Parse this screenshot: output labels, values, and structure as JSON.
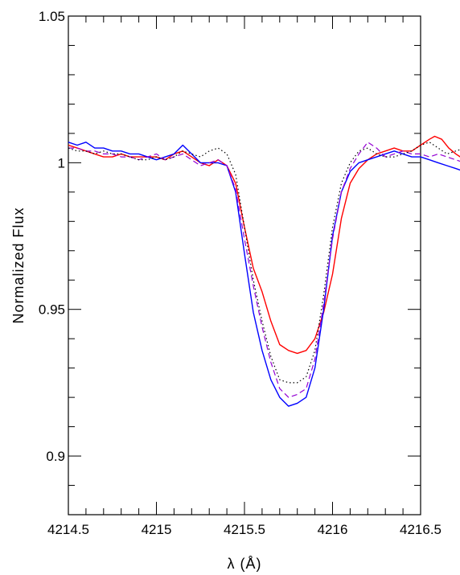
{
  "chart_data": {
    "type": "line",
    "title": "",
    "xlabel": "λ (Å)",
    "ylabel": "Normalized Flux",
    "xlim": [
      4214.5,
      4216.5
    ],
    "ylim": [
      0.88,
      1.05
    ],
    "xticks": [
      4214.5,
      4215,
      4215.5,
      4216,
      4216.5
    ],
    "xtick_labels": [
      "4214.5",
      "4215",
      "4215.5",
      "4216",
      "4216.5"
    ],
    "yticks": [
      0.9,
      0.95,
      1.0,
      1.05
    ],
    "ytick_labels": [
      "0.9",
      "0.95",
      "1",
      "1.05"
    ],
    "grid": false,
    "series": [
      {
        "color": "#ff0000",
        "style": "solid",
        "points": [
          [
            4214.5,
            1.006
          ],
          [
            4214.55,
            1.005
          ],
          [
            4214.6,
            1.004
          ],
          [
            4214.65,
            1.003
          ],
          [
            4214.7,
            1.002
          ],
          [
            4214.75,
            1.002
          ],
          [
            4214.8,
            1.003
          ],
          [
            4214.85,
            1.002
          ],
          [
            4214.9,
            1.002
          ],
          [
            4214.95,
            1.002
          ],
          [
            4215.0,
            1.002
          ],
          [
            4215.05,
            1.001
          ],
          [
            4215.1,
            1.003
          ],
          [
            4215.15,
            1.004
          ],
          [
            4215.2,
            1.002
          ],
          [
            4215.25,
            1.0
          ],
          [
            4215.3,
            0.999
          ],
          [
            4215.35,
            1.001
          ],
          [
            4215.4,
            0.999
          ],
          [
            4215.45,
            0.993
          ],
          [
            4215.5,
            0.978
          ],
          [
            4215.55,
            0.964
          ],
          [
            4215.6,
            0.956
          ],
          [
            4215.65,
            0.946
          ],
          [
            4215.7,
            0.938
          ],
          [
            4215.75,
            0.936
          ],
          [
            4215.8,
            0.935
          ],
          [
            4215.85,
            0.936
          ],
          [
            4215.9,
            0.94
          ],
          [
            4215.95,
            0.949
          ],
          [
            4216.0,
            0.962
          ],
          [
            4216.05,
            0.981
          ],
          [
            4216.1,
            0.993
          ],
          [
            4216.15,
            0.998
          ],
          [
            4216.2,
            1.001
          ],
          [
            4216.25,
            1.003
          ],
          [
            4216.3,
            1.004
          ],
          [
            4216.35,
            1.005
          ],
          [
            4216.4,
            1.004
          ],
          [
            4216.45,
            1.004
          ],
          [
            4216.5,
            1.006
          ],
          [
            4216.55,
            1.008
          ],
          [
            4216.58,
            1.009
          ],
          [
            4216.62,
            1.008
          ],
          [
            4216.66,
            1.005
          ],
          [
            4216.7,
            1.003
          ],
          [
            4216.75,
            1.001
          ],
          [
            4216.8,
            1.0
          ]
        ]
      },
      {
        "color": "#0000ff",
        "style": "solid",
        "points": [
          [
            4214.5,
            1.007
          ],
          [
            4214.55,
            1.006
          ],
          [
            4214.6,
            1.007
          ],
          [
            4214.65,
            1.005
          ],
          [
            4214.7,
            1.005
          ],
          [
            4214.75,
            1.004
          ],
          [
            4214.8,
            1.004
          ],
          [
            4214.85,
            1.003
          ],
          [
            4214.9,
            1.003
          ],
          [
            4214.95,
            1.002
          ],
          [
            4215.0,
            1.001
          ],
          [
            4215.05,
            1.002
          ],
          [
            4215.1,
            1.003
          ],
          [
            4215.15,
            1.006
          ],
          [
            4215.2,
            1.003
          ],
          [
            4215.25,
            1.0
          ],
          [
            4215.3,
            1.0
          ],
          [
            4215.35,
            1.0
          ],
          [
            4215.4,
            0.999
          ],
          [
            4215.45,
            0.99
          ],
          [
            4215.5,
            0.969
          ],
          [
            4215.55,
            0.949
          ],
          [
            4215.6,
            0.936
          ],
          [
            4215.65,
            0.926
          ],
          [
            4215.7,
            0.92
          ],
          [
            4215.75,
            0.917
          ],
          [
            4215.8,
            0.918
          ],
          [
            4215.85,
            0.92
          ],
          [
            4215.9,
            0.93
          ],
          [
            4215.95,
            0.95
          ],
          [
            4216.0,
            0.975
          ],
          [
            4216.05,
            0.99
          ],
          [
            4216.1,
            0.997
          ],
          [
            4216.15,
            1.0
          ],
          [
            4216.2,
            1.001
          ],
          [
            4216.25,
            1.002
          ],
          [
            4216.3,
            1.003
          ],
          [
            4216.35,
            1.004
          ],
          [
            4216.4,
            1.003
          ],
          [
            4216.45,
            1.002
          ],
          [
            4216.5,
            1.002
          ],
          [
            4216.55,
            1.001
          ],
          [
            4216.6,
            1.0
          ],
          [
            4216.65,
            0.999
          ],
          [
            4216.7,
            0.998
          ],
          [
            4216.75,
            0.997
          ],
          [
            4216.8,
            0.996
          ]
        ]
      },
      {
        "color": "#9400d3",
        "style": "dashed",
        "points": [
          [
            4214.5,
            1.005
          ],
          [
            4214.55,
            1.005
          ],
          [
            4214.6,
            1.004
          ],
          [
            4214.65,
            1.004
          ],
          [
            4214.7,
            1.003
          ],
          [
            4214.75,
            1.003
          ],
          [
            4214.8,
            1.002
          ],
          [
            4214.85,
            1.002
          ],
          [
            4214.9,
            1.001
          ],
          [
            4214.95,
            1.002
          ],
          [
            4215.0,
            1.003
          ],
          [
            4215.05,
            1.001
          ],
          [
            4215.1,
            1.002
          ],
          [
            4215.15,
            1.003
          ],
          [
            4215.2,
            1.001
          ],
          [
            4215.25,
            0.999
          ],
          [
            4215.3,
            1.0
          ],
          [
            4215.35,
            1.001
          ],
          [
            4215.4,
            0.999
          ],
          [
            4215.45,
            0.991
          ],
          [
            4215.5,
            0.974
          ],
          [
            4215.55,
            0.958
          ],
          [
            4215.6,
            0.944
          ],
          [
            4215.65,
            0.932
          ],
          [
            4215.7,
            0.923
          ],
          [
            4215.75,
            0.92
          ],
          [
            4215.8,
            0.921
          ],
          [
            4215.85,
            0.923
          ],
          [
            4215.9,
            0.933
          ],
          [
            4215.95,
            0.952
          ],
          [
            4216.0,
            0.974
          ],
          [
            4216.05,
            0.99
          ],
          [
            4216.1,
            0.998
          ],
          [
            4216.15,
            1.003
          ],
          [
            4216.2,
            1.007
          ],
          [
            4216.25,
            1.005
          ],
          [
            4216.3,
            1.002
          ],
          [
            4216.35,
            1.003
          ],
          [
            4216.4,
            1.004
          ],
          [
            4216.45,
            1.003
          ],
          [
            4216.5,
            1.003
          ],
          [
            4216.55,
            1.002
          ],
          [
            4216.6,
            1.003
          ],
          [
            4216.65,
            1.002
          ],
          [
            4216.7,
            1.001
          ],
          [
            4216.75,
            1.0
          ],
          [
            4216.8,
            1.0
          ]
        ]
      },
      {
        "color": "#000000",
        "style": "dotted",
        "points": [
          [
            4214.5,
            1.005
          ],
          [
            4214.55,
            1.004
          ],
          [
            4214.6,
            1.004
          ],
          [
            4214.65,
            1.003
          ],
          [
            4214.7,
            1.004
          ],
          [
            4214.75,
            1.003
          ],
          [
            4214.8,
            1.003
          ],
          [
            4214.85,
            1.002
          ],
          [
            4214.9,
            1.001
          ],
          [
            4214.95,
            1.001
          ],
          [
            4215.0,
            1.002
          ],
          [
            4215.05,
            1.001
          ],
          [
            4215.1,
            1.002
          ],
          [
            4215.15,
            1.004
          ],
          [
            4215.2,
            1.003
          ],
          [
            4215.25,
            1.002
          ],
          [
            4215.3,
            1.004
          ],
          [
            4215.35,
            1.005
          ],
          [
            4215.4,
            1.003
          ],
          [
            4215.45,
            0.996
          ],
          [
            4215.5,
            0.978
          ],
          [
            4215.55,
            0.96
          ],
          [
            4215.6,
            0.946
          ],
          [
            4215.65,
            0.934
          ],
          [
            4215.7,
            0.926
          ],
          [
            4215.75,
            0.925
          ],
          [
            4215.8,
            0.925
          ],
          [
            4215.85,
            0.927
          ],
          [
            4215.9,
            0.936
          ],
          [
            4215.95,
            0.955
          ],
          [
            4216.0,
            0.978
          ],
          [
            4216.05,
            0.993
          ],
          [
            4216.1,
            1.0
          ],
          [
            4216.15,
            1.004
          ],
          [
            4216.2,
            1.005
          ],
          [
            4216.25,
            1.003
          ],
          [
            4216.3,
            1.002
          ],
          [
            4216.35,
            1.002
          ],
          [
            4216.4,
            1.003
          ],
          [
            4216.45,
            1.004
          ],
          [
            4216.5,
            1.006
          ],
          [
            4216.55,
            1.007
          ],
          [
            4216.6,
            1.005
          ],
          [
            4216.65,
            1.003
          ],
          [
            4216.7,
            1.004
          ],
          [
            4216.75,
            1.005
          ],
          [
            4216.8,
            1.006
          ]
        ]
      }
    ]
  }
}
